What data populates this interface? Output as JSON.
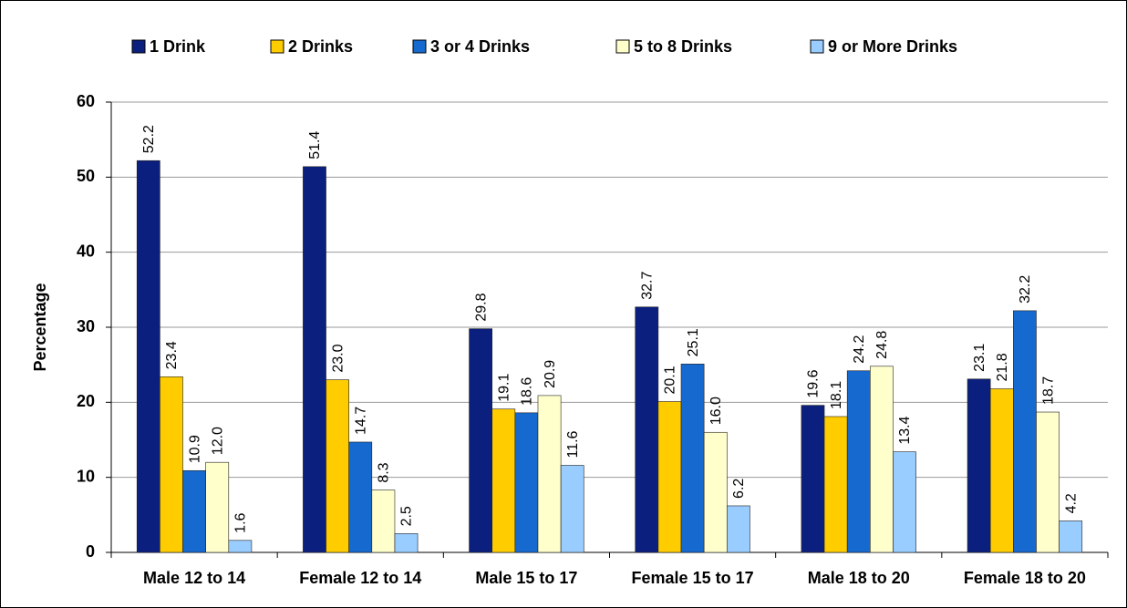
{
  "chart_data": {
    "type": "bar",
    "y_label": "Percentage",
    "categories": [
      "Male 12 to 14",
      "Female 12 to 14",
      "Male 15 to 17",
      "Female 15 to 17",
      "Male 18 to 20",
      "Female 18 to 20"
    ],
    "series": [
      {
        "name": "1 Drink",
        "color": "#0b1f7e",
        "values": [
          52.2,
          51.4,
          29.8,
          32.7,
          19.6,
          23.1
        ],
        "value_labels": [
          "52.2",
          "51.4",
          "29.8",
          "32.7",
          "19.6",
          "23.1"
        ]
      },
      {
        "name": "2 Drinks",
        "color": "#ffcc00",
        "values": [
          23.4,
          23.0,
          19.1,
          20.1,
          18.1,
          21.8
        ],
        "value_labels": [
          "23.4",
          "23.0",
          "19.1",
          "20.1",
          "18.1",
          "21.8"
        ]
      },
      {
        "name": "3 or 4 Drinks",
        "color": "#1569cf",
        "values": [
          10.9,
          14.7,
          18.6,
          25.1,
          24.2,
          32.2
        ],
        "value_labels": [
          "10.9",
          "14.7",
          "18.6",
          "25.1",
          "24.2",
          "32.2"
        ]
      },
      {
        "name": "5 to 8 Drinks",
        "color": "#ffffcc",
        "values": [
          12.0,
          8.3,
          20.9,
          16.0,
          24.8,
          18.7
        ],
        "value_labels": [
          "12.0",
          "8.3",
          "20.9",
          "16.0",
          "24.8",
          "18.7"
        ]
      },
      {
        "name": "9 or More Drinks",
        "color": "#99ccff",
        "values": [
          1.6,
          2.5,
          11.6,
          6.2,
          13.4,
          4.2
        ],
        "value_labels": [
          "1.6",
          "2.5",
          "11.6",
          "6.2",
          "13.4",
          "4.2"
        ]
      }
    ],
    "ylim": [
      0,
      60
    ],
    "yticks": [
      0,
      10,
      20,
      30,
      40,
      50,
      60
    ],
    "grid": true,
    "legend": "top"
  }
}
